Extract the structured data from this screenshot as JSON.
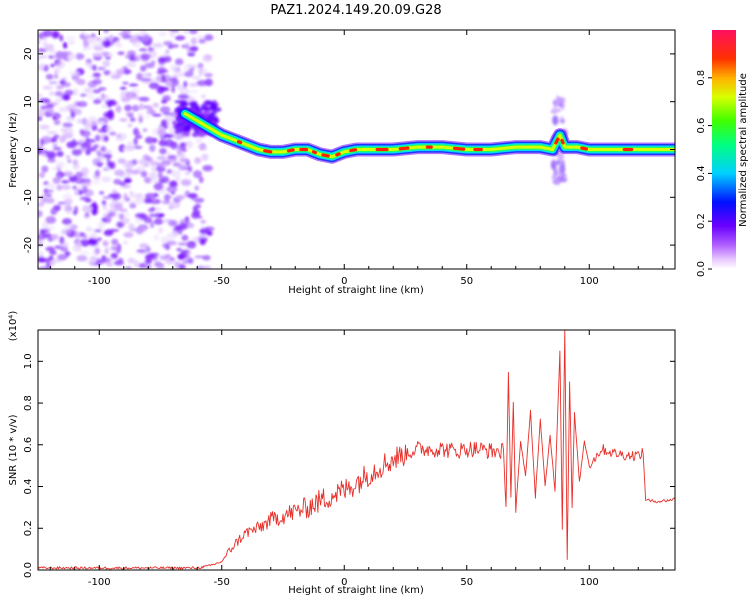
{
  "figure_title": "PAZ1.2024.149.20.09.G28",
  "chart_data": [
    {
      "type": "heatmap",
      "xlabel": "Height of straight line (km)",
      "ylabel": "Frequency (Hz)",
      "xlim": [
        -125,
        135
      ],
      "ylim": [
        -25,
        25
      ],
      "xticks": [
        -100,
        -50,
        0,
        50,
        100
      ],
      "yticks": [
        -20,
        -10,
        0,
        10,
        20
      ],
      "grid": false,
      "colorbar": {
        "label": "Normalized spectral amplitude",
        "range": [
          0.0,
          1.0
        ],
        "ticks": [
          0.0,
          0.2,
          0.4,
          0.6,
          0.8
        ],
        "colormap": "rainbow (magenta-blue-cyan-green-yellow-red)"
      },
      "ridge": {
        "description": "dominant frequency ridge",
        "x": [
          -65,
          -60,
          -55,
          -50,
          -45,
          -40,
          -35,
          -30,
          -25,
          -20,
          -15,
          -10,
          -5,
          0,
          5,
          10,
          20,
          30,
          40,
          50,
          60,
          70,
          80,
          85,
          88,
          90,
          95,
          100,
          110,
          120,
          135
        ],
        "y": [
          7.5,
          6,
          4.5,
          3,
          2,
          1,
          0,
          -0.5,
          -0.5,
          0,
          0,
          -1,
          -1.5,
          -0.5,
          0,
          0,
          0,
          0.5,
          0.5,
          0,
          0,
          0.5,
          0.5,
          0,
          3,
          0.5,
          0.5,
          0,
          0,
          0,
          0
        ]
      }
    },
    {
      "type": "line",
      "xlabel": "Height of straight line (km)",
      "ylabel": "SNR (10 * v/v)",
      "y_multiplier": "(x10⁴)",
      "xlim": [
        -125,
        135
      ],
      "ylim": [
        0,
        1.15
      ],
      "xticks": [
        -100,
        -50,
        0,
        50,
        100
      ],
      "yticks": [
        0.0,
        0.2,
        0.4,
        0.6,
        0.8,
        1.0
      ],
      "grid": false,
      "color": "#e8302a",
      "series": [
        {
          "name": "",
          "x": [
            -125,
            -60,
            -55,
            -50,
            -45,
            -40,
            -35,
            -30,
            -25,
            -20,
            -15,
            -10,
            -5,
            0,
            5,
            10,
            15,
            20,
            25,
            30,
            35,
            40,
            45,
            50,
            55,
            60,
            65,
            66,
            67,
            68,
            69,
            70,
            72,
            74,
            76,
            78,
            80,
            82,
            84,
            86,
            88,
            89,
            90,
            91,
            92,
            93,
            94,
            96,
            98,
            100,
            105,
            110,
            115,
            120,
            122,
            123,
            125,
            130,
            135
          ],
          "y": [
            0.01,
            0.01,
            0.02,
            0.04,
            0.12,
            0.18,
            0.2,
            0.24,
            0.26,
            0.28,
            0.3,
            0.33,
            0.36,
            0.38,
            0.42,
            0.46,
            0.5,
            0.53,
            0.56,
            0.58,
            0.58,
            0.58,
            0.57,
            0.58,
            0.58,
            0.57,
            0.57,
            0.3,
            0.95,
            0.35,
            0.8,
            0.28,
            0.62,
            0.45,
            0.76,
            0.35,
            0.72,
            0.4,
            0.65,
            0.38,
            1.05,
            0.2,
            1.15,
            0.05,
            0.9,
            0.3,
            0.75,
            0.42,
            0.62,
            0.5,
            0.58,
            0.56,
            0.55,
            0.55,
            0.56,
            0.34,
            0.33,
            0.33,
            0.34
          ]
        }
      ]
    }
  ]
}
